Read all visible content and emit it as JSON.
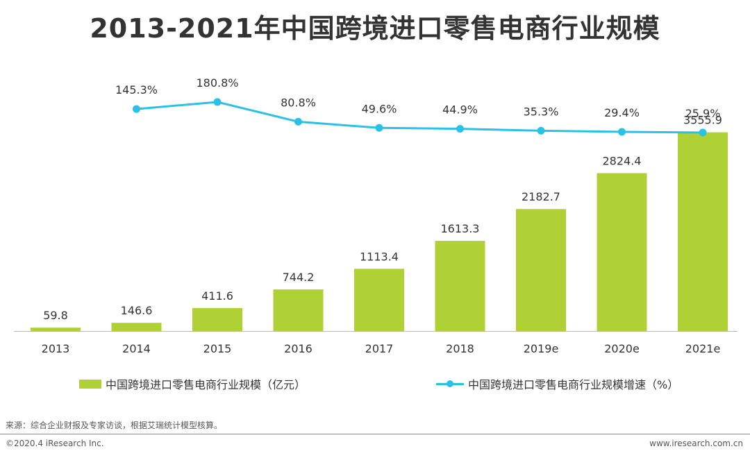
{
  "chart_data": {
    "type": "bar+line",
    "title": "2013-2021年中国跨境进口零售电商行业规模",
    "categories": [
      "2013",
      "2014",
      "2015",
      "2016",
      "2017",
      "2018",
      "2019e",
      "2020e",
      "2021e"
    ],
    "series": [
      {
        "name": "中国跨境进口零售电商行业规模（亿元）",
        "type": "bar",
        "color": "#afd135",
        "values": [
          59.8,
          146.6,
          411.6,
          744.2,
          1113.4,
          1613.3,
          2182.7,
          2824.4,
          3555.9
        ],
        "labels": [
          "59.8",
          "146.6",
          "411.6",
          "744.2",
          "1113.4",
          "1613.3",
          "2182.7",
          "2824.4",
          "3555.9"
        ]
      },
      {
        "name": "中国跨境进口零售电商行业规模增速（%）",
        "type": "line",
        "color": "#29c1e6",
        "values": [
          null,
          145.3,
          180.8,
          80.8,
          49.6,
          44.9,
          35.3,
          29.4,
          25.9
        ],
        "labels": [
          "",
          "145.3%",
          "180.8%",
          "80.8%",
          "49.6%",
          "44.9%",
          "35.3%",
          "29.4%",
          "25.9%"
        ]
      }
    ],
    "ylim": [
      0,
      3800
    ],
    "y2lim": [
      0,
      200
    ]
  },
  "legend": {
    "bar_label": "中国跨境进口零售电商行业规模（亿元）",
    "line_label": "中国跨境进口零售电商行业规模增速（%）"
  },
  "source_text": "来源：综合企业财报及专家访谈，根据艾瑞统计模型核算。",
  "footer": {
    "copyright": "©2020.4 iResearch Inc.",
    "website": "www.iresearch.com.cn"
  }
}
